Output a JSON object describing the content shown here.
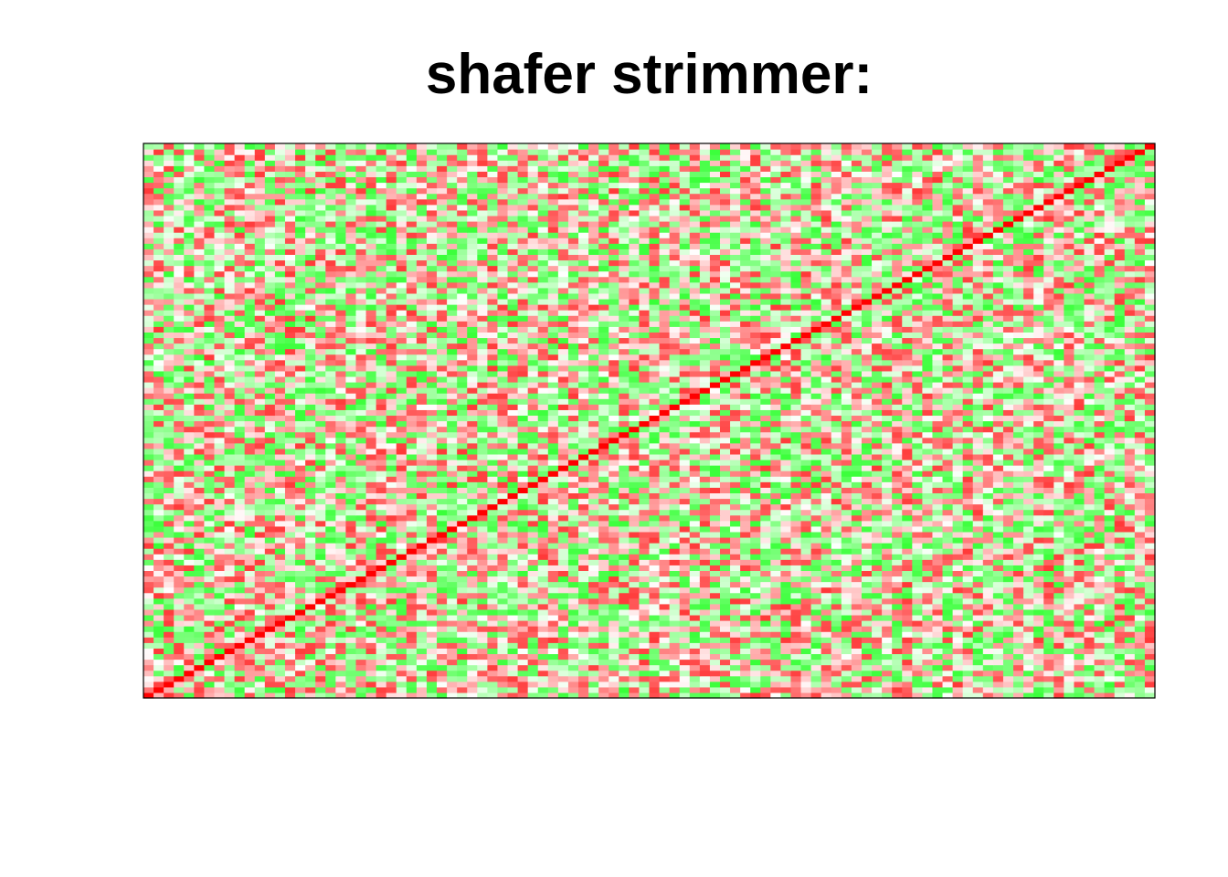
{
  "chart_data": {
    "type": "heatmap",
    "title": "shafer strimmer:",
    "xlabel": "",
    "ylabel": "",
    "n_rows": 100,
    "n_cols": 100,
    "value_range": [
      -1,
      1
    ],
    "colors": {
      "negative": "#00ff00",
      "zero": "#ffffff",
      "positive": "#ff0000"
    },
    "diagonal_value": 1,
    "off_diagonal": "random values mostly between -0.8 and 0.8",
    "axes_shown": false,
    "grid": false,
    "legend": "none"
  }
}
